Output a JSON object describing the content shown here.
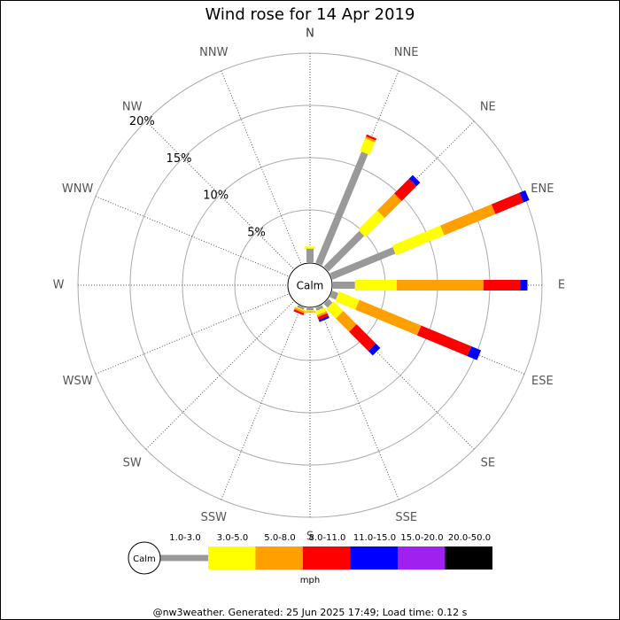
{
  "chart_data": {
    "type": "wind_rose",
    "title": "Wind rose for 14 Apr 2019",
    "directions": [
      "N",
      "NNE",
      "NE",
      "ENE",
      "E",
      "ESE",
      "SE",
      "SSE",
      "S",
      "SSW",
      "SW",
      "WSW",
      "W",
      "WNW",
      "NW",
      "NNW"
    ],
    "rlim": [
      0,
      20
    ],
    "rticks": [
      {
        "value": 5,
        "label": "5%"
      },
      {
        "value": 10,
        "label": "10%"
      },
      {
        "value": 15,
        "label": "15%"
      },
      {
        "value": 20,
        "label": "20%"
      }
    ],
    "center_label": "Calm",
    "unit": "mph",
    "series": [
      {
        "name": "1.0-3.0",
        "color": "#999999",
        "values": [
          1.3,
          11.5,
          4.8,
          6.5,
          2.1,
          0.6,
          0.5,
          0.3,
          0.2,
          0.2,
          0,
          0,
          0,
          0,
          0,
          0
        ]
      },
      {
        "name": "3.0-5.0",
        "color": "#ffff00",
        "values": [
          0.2,
          1.3,
          2.6,
          5.0,
          4.0,
          2.1,
          1.3,
          0.4,
          0.1,
          0.1,
          0,
          0,
          0,
          0,
          0,
          0
        ]
      },
      {
        "name": "5.0-8.0",
        "color": "#ff9f00",
        "values": [
          0,
          0.2,
          2.3,
          5.3,
          8.3,
          6.4,
          1.8,
          0.2,
          0.1,
          0.2,
          0,
          0,
          0,
          0,
          0,
          0
        ]
      },
      {
        "name": "8.0-11.0",
        "color": "#ff0000",
        "values": [
          0,
          0.2,
          2.0,
          2.9,
          3.5,
          5.2,
          2.6,
          0.3,
          0,
          0.2,
          0,
          0,
          0,
          0,
          0,
          0
        ]
      },
      {
        "name": "11.0-15.0",
        "color": "#0000ff",
        "values": [
          0,
          0,
          0.5,
          0.6,
          0.7,
          1.0,
          0.6,
          0.2,
          0,
          0,
          0,
          0,
          0,
          0,
          0,
          0
        ]
      },
      {
        "name": "15.0-20.0",
        "color": "#a020f0",
        "values": [
          0,
          0,
          0,
          0,
          0,
          0,
          0,
          0,
          0,
          0,
          0,
          0,
          0,
          0,
          0,
          0
        ]
      },
      {
        "name": "20.0-50.0",
        "color": "#000000",
        "values": [
          0,
          0,
          0,
          0,
          0,
          0,
          0,
          0,
          0,
          0,
          0,
          0,
          0,
          0,
          0,
          0
        ]
      }
    ],
    "footer": "@nw3weather.  Generated: 25 Jun 2025 17:49; Load time: 0.12 s"
  }
}
